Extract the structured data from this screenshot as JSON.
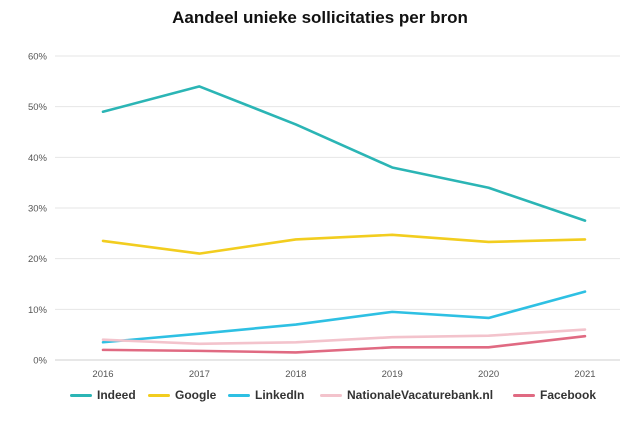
{
  "chart_data": {
    "type": "line",
    "title": "Aandeel unieke sollicitaties per bron",
    "xlabel": "",
    "ylabel": "",
    "categories": [
      "2016",
      "2017",
      "2018",
      "2019",
      "2020",
      "2021"
    ],
    "ylim": [
      0,
      60
    ],
    "yticks": [
      "0%",
      "10%",
      "20%",
      "30%",
      "40%",
      "50%",
      "60%"
    ],
    "grid": true,
    "legend_position": "bottom",
    "series": [
      {
        "name": "Indeed",
        "color": "#2bb5b5",
        "values": [
          49,
          54,
          46.5,
          38,
          34,
          27.5
        ]
      },
      {
        "name": "Google",
        "color": "#f2cd1f",
        "values": [
          23.5,
          21,
          23.8,
          24.7,
          23.3,
          23.8
        ]
      },
      {
        "name": "LinkedIn",
        "color": "#2ec0e3",
        "values": [
          3.5,
          5.2,
          7,
          9.5,
          8.3,
          13.5
        ]
      },
      {
        "name": "NationaleVacaturebank.nl",
        "color": "#f3c3cc",
        "values": [
          4,
          3.2,
          3.5,
          4.5,
          4.8,
          6
        ]
      },
      {
        "name": "Facebook",
        "color": "#e06a82",
        "values": [
          2,
          1.8,
          1.5,
          2.5,
          2.5,
          4.7
        ]
      }
    ]
  }
}
